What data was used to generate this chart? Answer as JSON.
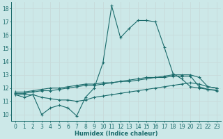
{
  "xlabel": "Humidex (Indice chaleur)",
  "bg_color": "#cce8e8",
  "grid_color": "#c8dada",
  "line_color": "#1a6b6b",
  "xlim": [
    -0.5,
    23.5
  ],
  "ylim": [
    9.5,
    18.5
  ],
  "xticks": [
    0,
    1,
    2,
    3,
    4,
    5,
    6,
    7,
    8,
    9,
    10,
    11,
    12,
    13,
    14,
    15,
    16,
    17,
    18,
    19,
    20,
    21,
    22,
    23
  ],
  "yticks": [
    10,
    11,
    12,
    13,
    14,
    15,
    16,
    17,
    18
  ],
  "s1_x": [
    0,
    1,
    2,
    3,
    4,
    5,
    6,
    7,
    8,
    9,
    10,
    11,
    12,
    13,
    14,
    15,
    16,
    17,
    18,
    19,
    20,
    21,
    22,
    23
  ],
  "s1_y": [
    11.5,
    11.3,
    11.5,
    10.0,
    10.5,
    10.7,
    10.5,
    9.9,
    11.3,
    12.0,
    13.9,
    18.2,
    15.8,
    16.5,
    17.1,
    17.1,
    17.0,
    15.1,
    13.1,
    12.7,
    12.1,
    12.0,
    11.9,
    11.8
  ],
  "s2_x": [
    0,
    1,
    2,
    3,
    4,
    5,
    6,
    7,
    8,
    9,
    10,
    11,
    12,
    13,
    14,
    15,
    16,
    17,
    18,
    19,
    20,
    21,
    22,
    23
  ],
  "s2_y": [
    11.7,
    11.7,
    11.8,
    11.9,
    12.0,
    12.0,
    12.1,
    12.2,
    12.3,
    12.3,
    12.4,
    12.4,
    12.5,
    12.6,
    12.7,
    12.8,
    12.8,
    12.9,
    13.0,
    13.0,
    13.0,
    12.8,
    12.1,
    12.0
  ],
  "s3_x": [
    0,
    1,
    2,
    3,
    4,
    5,
    6,
    7,
    8,
    9,
    10,
    11,
    12,
    13,
    14,
    15,
    16,
    17,
    18,
    19,
    20,
    21,
    22,
    23
  ],
  "s3_y": [
    11.6,
    11.6,
    11.7,
    11.8,
    11.8,
    11.9,
    12.0,
    12.1,
    12.2,
    12.2,
    12.3,
    12.4,
    12.5,
    12.5,
    12.6,
    12.7,
    12.8,
    12.8,
    12.9,
    12.9,
    12.9,
    12.1,
    11.9,
    11.85
  ],
  "s4_x": [
    0,
    1,
    2,
    3,
    4,
    5,
    6,
    7,
    8,
    9,
    10,
    11,
    12,
    13,
    14,
    15,
    16,
    17,
    18,
    19,
    20,
    21,
    22,
    23
  ],
  "s4_y": [
    11.5,
    11.5,
    11.5,
    11.3,
    11.2,
    11.1,
    11.1,
    11.0,
    11.1,
    11.3,
    11.4,
    11.5,
    11.6,
    11.7,
    11.8,
    11.9,
    12.0,
    12.1,
    12.2,
    12.3,
    12.4,
    12.3,
    12.1,
    12.0
  ]
}
